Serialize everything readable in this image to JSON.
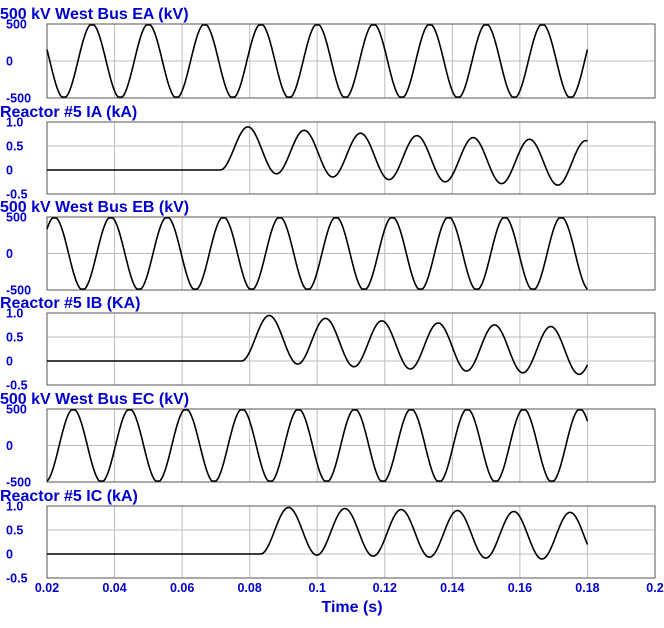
{
  "colors": {
    "title": "#0000cc",
    "tick": "#0000cc",
    "trace": "#000000",
    "grid": "#bdbdbd"
  },
  "chart_data": {
    "type": "line",
    "xlabel": "Time (s)",
    "xlim": [
      0.02,
      0.2
    ],
    "xticks": [
      0.02,
      0.04,
      0.06,
      0.08,
      0.1,
      0.12,
      0.14,
      0.16,
      0.18,
      0.2
    ],
    "xtick_labels": [
      "0.02",
      "0.04",
      "0.06",
      "0.08",
      "0.1",
      "0.12",
      "0.14",
      "0.16",
      "0.18",
      "0.2"
    ],
    "grid": true,
    "panels": [
      {
        "title": "500 kV West Bus EA (kV)",
        "ylim": [
          -500,
          500
        ],
        "yticks": [
          500,
          0,
          -500
        ],
        "ytick_labels": [
          "500",
          "0",
          "-500"
        ],
        "series": {
          "kind": "sine",
          "amplitude": 500,
          "frequency_hz": 60,
          "phase_deg": 0,
          "start_time": 0.0,
          "end_time": 0.18
        }
      },
      {
        "title": "Reactor #5 IA (kA)",
        "ylim": [
          -0.5,
          1.0
        ],
        "yticks": [
          1.0,
          0.5,
          0,
          -0.5
        ],
        "ytick_labels": [
          "1.0",
          "0.5",
          "0",
          "-0.5"
        ],
        "series": {
          "kind": "energize",
          "energize_time": 0.0712,
          "amplitude": 0.47,
          "offset": 0.3,
          "offset_decay_s": 0.09,
          "frequency_hz": 60,
          "end_time": 0.18
        }
      },
      {
        "title": "500 kV West Bus EB (kV)",
        "ylim": [
          -500,
          500
        ],
        "yticks": [
          500,
          0,
          -500
        ],
        "ytick_labels": [
          "500",
          "0",
          "-500"
        ],
        "series": {
          "kind": "sine",
          "amplitude": 500,
          "frequency_hz": 60,
          "phase_deg": -120,
          "start_time": 0.0,
          "end_time": 0.18
        }
      },
      {
        "title": "Reactor #5 IB (KA)",
        "ylim": [
          -0.5,
          1.0
        ],
        "yticks": [
          1.0,
          0.5,
          0,
          -0.5
        ],
        "ytick_labels": [
          "1.0",
          "0.5",
          "0",
          "-0.5"
        ],
        "series": {
          "kind": "energize",
          "energize_time": 0.0775,
          "amplitude": 0.49,
          "offset": 0.43,
          "offset_decay_s": 0.12,
          "frequency_hz": 60,
          "end_time": 0.18
        }
      },
      {
        "title": "500 kV West Bus EC (kV)",
        "ylim": [
          -500,
          500
        ],
        "yticks": [
          500,
          0,
          -500
        ],
        "ytick_labels": [
          "500",
          "0",
          "-500"
        ],
        "series": {
          "kind": "sine",
          "amplitude": 500,
          "frequency_hz": 60,
          "phase_deg": 120,
          "start_time": 0.0,
          "end_time": 0.18
        }
      },
      {
        "title": "Reactor #5 IC (kA)",
        "ylim": [
          -0.5,
          1.0
        ],
        "yticks": [
          1.0,
          0.5,
          0,
          -0.5
        ],
        "ytick_labels": [
          "1.0",
          "0.5",
          "0",
          "-0.5"
        ],
        "series": {
          "kind": "energize",
          "energize_time": 0.0832,
          "amplitude": 0.49,
          "offset": 0.45,
          "offset_decay_s": 0.35,
          "frequency_hz": 60,
          "end_time": 0.18
        }
      }
    ]
  }
}
